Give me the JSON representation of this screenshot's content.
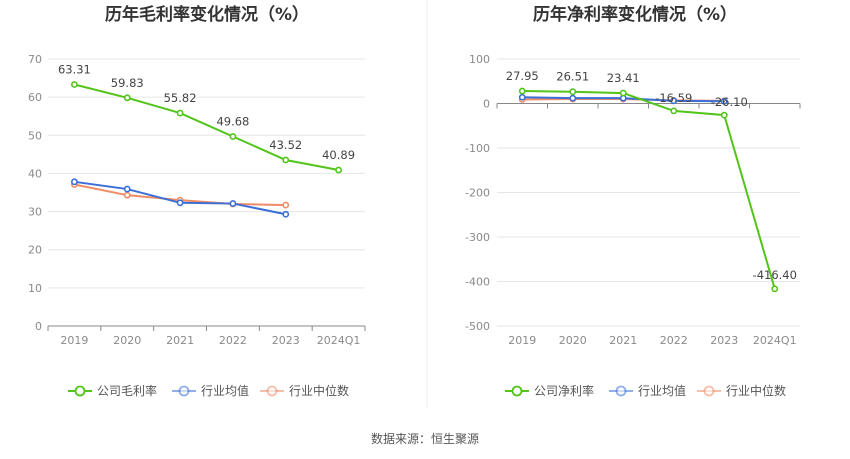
{
  "source_text": "数据来源：恒生聚源",
  "chart_data": [
    {
      "type": "line",
      "title": "历年毛利率变化情况（%）",
      "categories": [
        "2019",
        "2020",
        "2021",
        "2022",
        "2023",
        "2024Q1"
      ],
      "ylim": [
        0,
        70
      ],
      "yticks": [
        0,
        10,
        20,
        30,
        40,
        50,
        60,
        70
      ],
      "grid": true,
      "legend_position": "bottom",
      "series": [
        {
          "name": "公司毛利率",
          "color": "#52c41a",
          "values": [
            63.31,
            59.83,
            55.82,
            49.68,
            43.52,
            40.89
          ],
          "labels": [
            "63.31",
            "59.83",
            "55.82",
            "49.68",
            "43.52",
            "40.89"
          ]
        },
        {
          "name": "行业均值",
          "color": "#3b6fd8",
          "values": [
            37.8,
            35.9,
            32.3,
            32.1,
            29.3,
            null
          ]
        },
        {
          "name": "行业中位数",
          "color": "#f08c65",
          "values": [
            37.1,
            34.3,
            33.0,
            32.0,
            31.7,
            null
          ]
        }
      ]
    },
    {
      "type": "line",
      "title": "历年净利率变化情况（%）",
      "categories": [
        "2019",
        "2020",
        "2021",
        "2022",
        "2023",
        "2024Q1"
      ],
      "ylim": [
        -500,
        100
      ],
      "yticks": [
        -500,
        -400,
        -300,
        -200,
        -100,
        0,
        100
      ],
      "grid": true,
      "legend_position": "bottom",
      "series": [
        {
          "name": "公司净利率",
          "color": "#52c41a",
          "values": [
            27.95,
            26.51,
            23.41,
            -16.59,
            -26.1,
            -416.4
          ],
          "labels": [
            "27.95",
            "26.51",
            "23.41",
            "-16.59",
            "-26.10",
            "-416.40"
          ]
        },
        {
          "name": "行业均值",
          "color": "#3b6fd8",
          "values": [
            14,
            12,
            12,
            6,
            5,
            null
          ]
        },
        {
          "name": "行业中位数",
          "color": "#f08c65",
          "values": [
            9,
            10,
            10,
            7,
            6,
            null
          ]
        }
      ]
    }
  ]
}
